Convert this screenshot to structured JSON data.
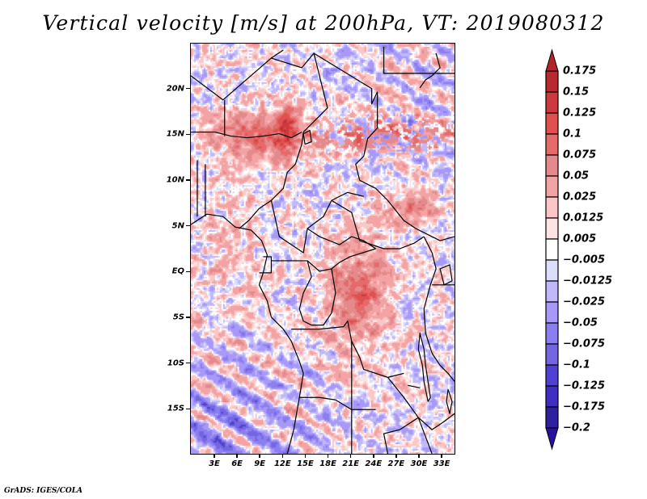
{
  "title": "Vertical velocity [m/s] at 200hPa, VT: 2019080312",
  "footer": "GrADS: IGES/COLA",
  "map": {
    "projection": "latlon",
    "lon_range": [
      -0.2,
      34.8
    ],
    "lat_range": [
      -20,
      25
    ],
    "variable": "Vertical velocity",
    "units": "m/s",
    "level": "200hPa",
    "valid_time": "2019080312",
    "y_axis": {
      "ticks": [
        {
          "lat": 20,
          "label": "20N"
        },
        {
          "lat": 15,
          "label": "15N"
        },
        {
          "lat": 10,
          "label": "10N"
        },
        {
          "lat": 5,
          "label": "5N"
        },
        {
          "lat": 0,
          "label": "EQ"
        },
        {
          "lat": -5,
          "label": "5S"
        },
        {
          "lat": -10,
          "label": "10S"
        },
        {
          "lat": -15,
          "label": "15S"
        }
      ]
    },
    "x_axis": {
      "ticks": [
        {
          "lon": 3,
          "label": "3E"
        },
        {
          "lon": 6,
          "label": "6E"
        },
        {
          "lon": 9,
          "label": "9E"
        },
        {
          "lon": 12,
          "label": "12E"
        },
        {
          "lon": 15,
          "label": "15E"
        },
        {
          "lon": 18,
          "label": "18E"
        },
        {
          "lon": 21,
          "label": "21E"
        },
        {
          "lon": 24,
          "label": "24E"
        },
        {
          "lon": 27,
          "label": "27E"
        },
        {
          "lon": 30,
          "label": "30E"
        },
        {
          "lon": 33,
          "label": "33E"
        }
      ]
    },
    "features": {
      "max_updraft_regions": [
        "Sahel near Lake Chad (~12-17N, 5-15E)",
        "central DR Congo (~0-6S, 20-25E)",
        "South Sudan/CAR (~5-10N, 27-32E)"
      ],
      "downdraft_bands": "NW-SE oriented bands over the South Atlantic (10-20S, 0-10E)"
    }
  },
  "colorbar": {
    "levels": [
      "0.175",
      "0.15",
      "0.125",
      "0.1",
      "0.075",
      "0.05",
      "0.025",
      "0.0125",
      "0.005",
      "-0.005",
      "-0.0125",
      "-0.025",
      "-0.05",
      "-0.075",
      "-0.1",
      "-0.125",
      "-0.175",
      "-0.2"
    ],
    "level_values": [
      0.175,
      0.15,
      0.125,
      0.1,
      0.075,
      0.05,
      0.025,
      0.0125,
      0.005,
      -0.005,
      -0.0125,
      -0.025,
      -0.05,
      -0.075,
      -0.1,
      -0.125,
      -0.175,
      -0.2
    ],
    "top_arrow_color": "#b0242a",
    "bottom_arrow_color": "#2a10a0",
    "box_colors": [
      "#b72a2d",
      "#cc3a3d",
      "#e0504f",
      "#e56a6a",
      "#e48a8c",
      "#f3a3a3",
      "#fbc6c6",
      "#fde4e4",
      "#ffffff",
      "#dcdcfb",
      "#c0b8fb",
      "#a898f7",
      "#8a7ef0",
      "#7366e0",
      "#4f42d0",
      "#3f2ec0",
      "#30209f"
    ]
  }
}
